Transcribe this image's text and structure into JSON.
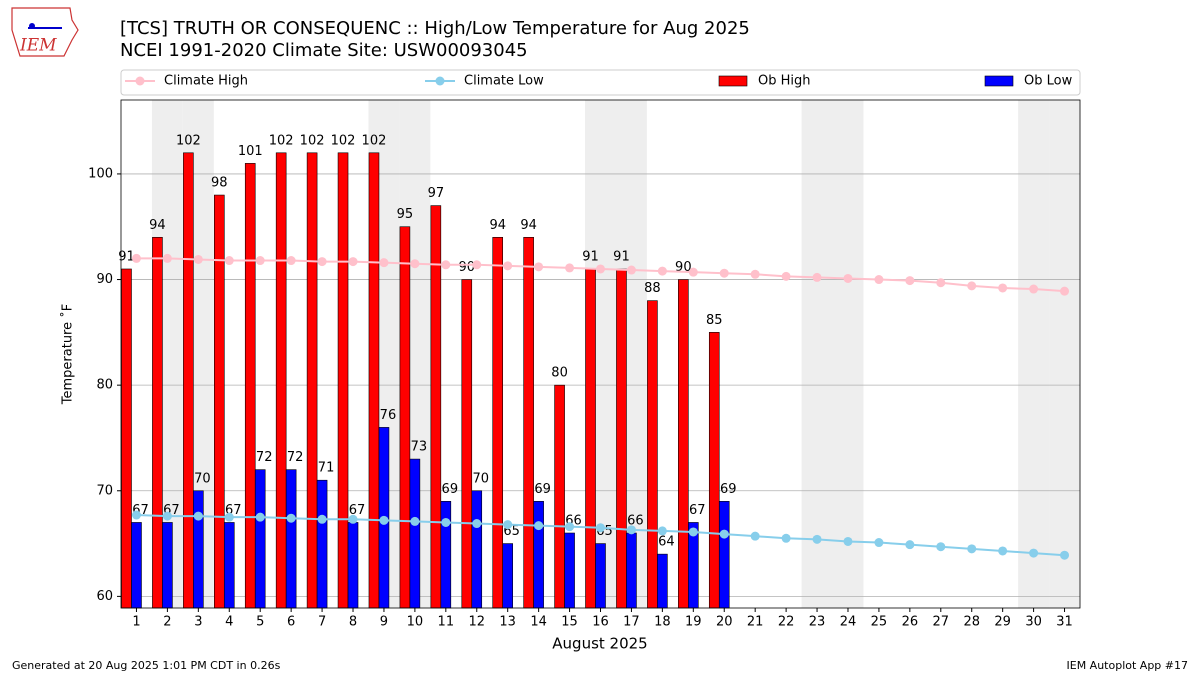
{
  "chart_data": {
    "type": "bar",
    "title": "[TCS] TRUTH OR CONSEQUENC :: High/Low Temperature for Aug 2025",
    "subtitle": "NCEI 1991-2020 Climate Site: USW00093045",
    "logo_text": "IEM",
    "xlabel": "August 2025",
    "ylabel": "Temperature ˚F",
    "footer_left": "Generated at 20 Aug 2025 1:01 PM CDT in 0.26s",
    "footer_right": "IEM Autoplot App #17",
    "categories": [
      "1",
      "2",
      "3",
      "4",
      "5",
      "6",
      "7",
      "8",
      "9",
      "10",
      "11",
      "12",
      "13",
      "14",
      "15",
      "16",
      "17",
      "18",
      "19",
      "20",
      "21",
      "22",
      "23",
      "24",
      "25",
      "26",
      "27",
      "28",
      "29",
      "30",
      "31"
    ],
    "shaded_categories": [
      2,
      3,
      9,
      10,
      16,
      17,
      23,
      24,
      30,
      31
    ],
    "shade_color": "#eeeeee",
    "ylim": [
      58.9,
      107
    ],
    "yticks": [
      60,
      70,
      80,
      90,
      100
    ],
    "grid": true,
    "series": [
      {
        "name": "Climate High",
        "kind": "line",
        "color": "#ffc0cb",
        "values": [
          92.0,
          92.0,
          91.9,
          91.8,
          91.8,
          91.8,
          91.7,
          91.7,
          91.6,
          91.5,
          91.4,
          91.4,
          91.3,
          91.2,
          91.1,
          91.0,
          90.9,
          90.8,
          90.7,
          90.6,
          90.5,
          90.3,
          90.2,
          90.1,
          90.0,
          89.9,
          89.7,
          89.4,
          89.2,
          89.1,
          88.9
        ]
      },
      {
        "name": "Climate Low",
        "kind": "line",
        "color": "#87ceeb",
        "values": [
          67.7,
          67.6,
          67.6,
          67.5,
          67.5,
          67.4,
          67.3,
          67.3,
          67.2,
          67.1,
          67.0,
          66.9,
          66.8,
          66.7,
          66.6,
          66.5,
          66.3,
          66.2,
          66.1,
          65.9,
          65.7,
          65.5,
          65.4,
          65.2,
          65.1,
          64.9,
          64.7,
          64.5,
          64.3,
          64.1,
          63.9
        ]
      },
      {
        "name": "Ob High",
        "kind": "bar",
        "color": "#ff0000",
        "offset": -1,
        "values": [
          91,
          94,
          102,
          98,
          101,
          102,
          102,
          102,
          102,
          95,
          97,
          90,
          94,
          94,
          80,
          91,
          91,
          88,
          90,
          85,
          null,
          null,
          null,
          null,
          null,
          null,
          null,
          null,
          null,
          null,
          null
        ]
      },
      {
        "name": "Ob Low",
        "kind": "bar",
        "color": "#0000ff",
        "offset": 0,
        "values": [
          67,
          67,
          70,
          67,
          72,
          72,
          71,
          67,
          76,
          73,
          69,
          70,
          65,
          69,
          66,
          65,
          66,
          64,
          67,
          69,
          null,
          null,
          null,
          null,
          null,
          null,
          null,
          null,
          null,
          null,
          null
        ]
      }
    ]
  }
}
